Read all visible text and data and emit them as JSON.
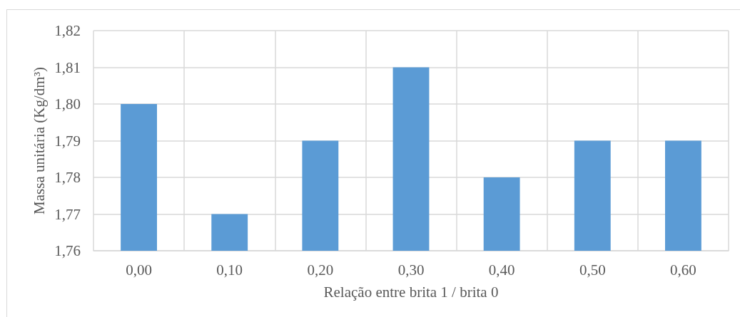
{
  "chart_data": {
    "type": "bar",
    "xlabel": "Relação entre brita 1 / brita 0",
    "ylabel": "Massa unitária (Kg/dm³)",
    "categories": [
      "0,00",
      "0,10",
      "0,20",
      "0,30",
      "0,40",
      "0,50",
      "0,60"
    ],
    "values": [
      1.8,
      1.77,
      1.79,
      1.81,
      1.78,
      1.79,
      1.79
    ],
    "color": "#5b9bd5",
    "ylim": [
      1.76,
      1.82
    ],
    "yticks": [
      {
        "value": 1.76,
        "label": "1,76"
      },
      {
        "value": 1.77,
        "label": "1,77"
      },
      {
        "value": 1.78,
        "label": "1,78"
      },
      {
        "value": 1.79,
        "label": "1,79"
      },
      {
        "value": 1.8,
        "label": "1,80"
      },
      {
        "value": 1.81,
        "label": "1,81"
      },
      {
        "value": 1.82,
        "label": "1,82"
      }
    ],
    "grid": true
  }
}
